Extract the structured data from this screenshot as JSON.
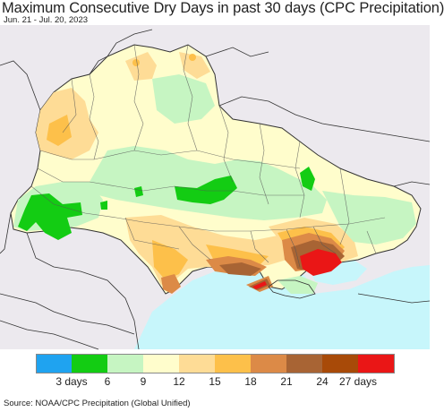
{
  "header": {
    "title": "Maximum Consecutive Dry Days in past 30 days (CPC Precipitation)",
    "date_range": "Jun. 21 - Jul. 20, 2023"
  },
  "legend": {
    "colors": [
      "#1fa3f0",
      "#13cc13",
      "#c6f5c2",
      "#fffdcc",
      "#fedc96",
      "#fdc04a",
      "#dc8a47",
      "#a86434",
      "#a84a08",
      "#ea1616"
    ],
    "ticks": [
      {
        "label": "3 days",
        "boundary": 1
      },
      {
        "label": "6",
        "boundary": 2
      },
      {
        "label": "9",
        "boundary": 3
      },
      {
        "label": "12",
        "boundary": 4
      },
      {
        "label": "15",
        "boundary": 5
      },
      {
        "label": "18",
        "boundary": 6
      },
      {
        "label": "21",
        "boundary": 7
      },
      {
        "label": "24",
        "boundary": 8
      },
      {
        "label": "27 days",
        "boundary": 9
      }
    ]
  },
  "source": "Source: NOAA/CPC Precipitation (Global Unified)",
  "map_colors": {
    "outside": "#ece9ee",
    "sea": "#c7f6fb",
    "border": "#333333",
    "oblast": "#555555"
  }
}
